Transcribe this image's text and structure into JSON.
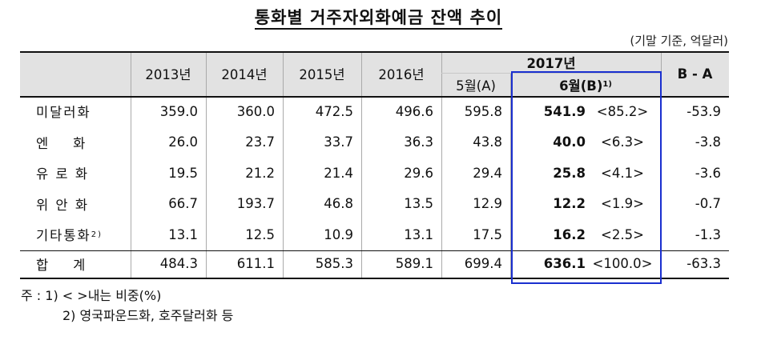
{
  "title": "통화별 거주자외화예금 잔액 추이",
  "unit": "(기말 기준, 억달러)",
  "header": {
    "years": [
      "2013년",
      "2014년",
      "2015년",
      "2016년"
    ],
    "year2017": "2017년",
    "may": "5월(A)",
    "june": "6월(B)",
    "june_sup": "1)",
    "diff": "B - A"
  },
  "rows": [
    {
      "label": "미달러화",
      "sup": "",
      "v2013": "359.0",
      "v2014": "360.0",
      "v2015": "472.5",
      "v2016": "496.6",
      "may": "595.8",
      "june": "541.9",
      "share": "<85.2>",
      "diff": "-53.9"
    },
    {
      "label": "엔    화",
      "sup": "",
      "v2013": "26.0",
      "v2014": "23.7",
      "v2015": "33.7",
      "v2016": "36.3",
      "may": "43.8",
      "june": "40.0",
      "share": "<6.3>",
      "diff": "-3.8"
    },
    {
      "label": "유 로 화",
      "sup": "",
      "v2013": "19.5",
      "v2014": "21.2",
      "v2015": "21.4",
      "v2016": "29.6",
      "may": "29.4",
      "june": "25.8",
      "share": "<4.1>",
      "diff": "-3.6"
    },
    {
      "label": "위 안 화",
      "sup": "",
      "v2013": "66.7",
      "v2014": "193.7",
      "v2015": "46.8",
      "v2016": "13.5",
      "may": "12.9",
      "june": "12.2",
      "share": "<1.9>",
      "diff": "-0.7"
    },
    {
      "label": "기타통화",
      "sup": "2)",
      "v2013": "13.1",
      "v2014": "12.5",
      "v2015": "10.9",
      "v2016": "13.1",
      "may": "17.5",
      "june": "16.2",
      "share": "<2.5>",
      "diff": "-1.3"
    }
  ],
  "total": {
    "label": "합    계",
    "v2013": "484.3",
    "v2014": "611.1",
    "v2015": "585.3",
    "v2016": "589.1",
    "may": "699.4",
    "june": "636.1",
    "share": "<100.0>",
    "diff": "-63.3"
  },
  "notes": {
    "line1": "주 : 1) <   >내는 비중(%)",
    "line2": "2) 영국파운드화, 호주달러화 등"
  }
}
